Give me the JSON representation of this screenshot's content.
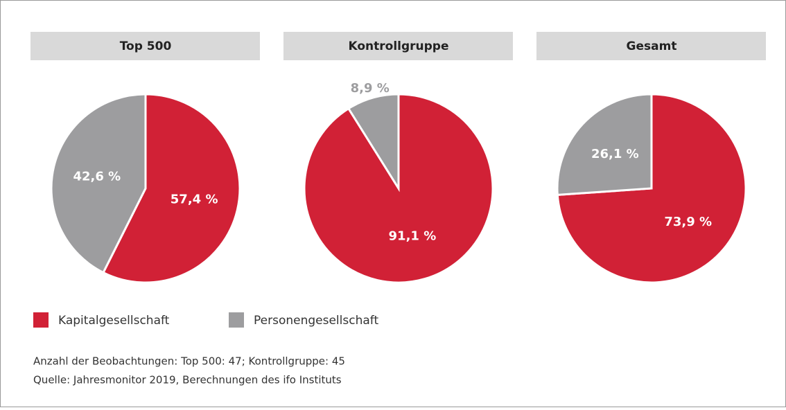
{
  "chart_data": [
    {
      "type": "pie",
      "title": "Top 500",
      "values": [
        57.4,
        42.6
      ],
      "value_labels": [
        "57,4 %",
        "42,6 %"
      ]
    },
    {
      "type": "pie",
      "title": "Kontrollgruppe",
      "values": [
        91.1,
        8.9
      ],
      "value_labels": [
        "91,1 %",
        "8,9 %"
      ]
    },
    {
      "type": "pie",
      "title": "Gesamt",
      "values": [
        73.9,
        26.1
      ],
      "value_labels": [
        "73,9 %",
        "26,1 %"
      ]
    }
  ],
  "legend": {
    "labels": [
      "Kapitalgesellschaft",
      "Personengesellschaft"
    ],
    "colors": [
      "#d12136",
      "#9d9d9f"
    ]
  },
  "notes": [
    "Anzahl der Beobachtungen: Top 500: 47; Kontrollgruppe: 45",
    "Quelle: Jahresmonitor 2019, Berechnungen des ifo Instituts"
  ]
}
